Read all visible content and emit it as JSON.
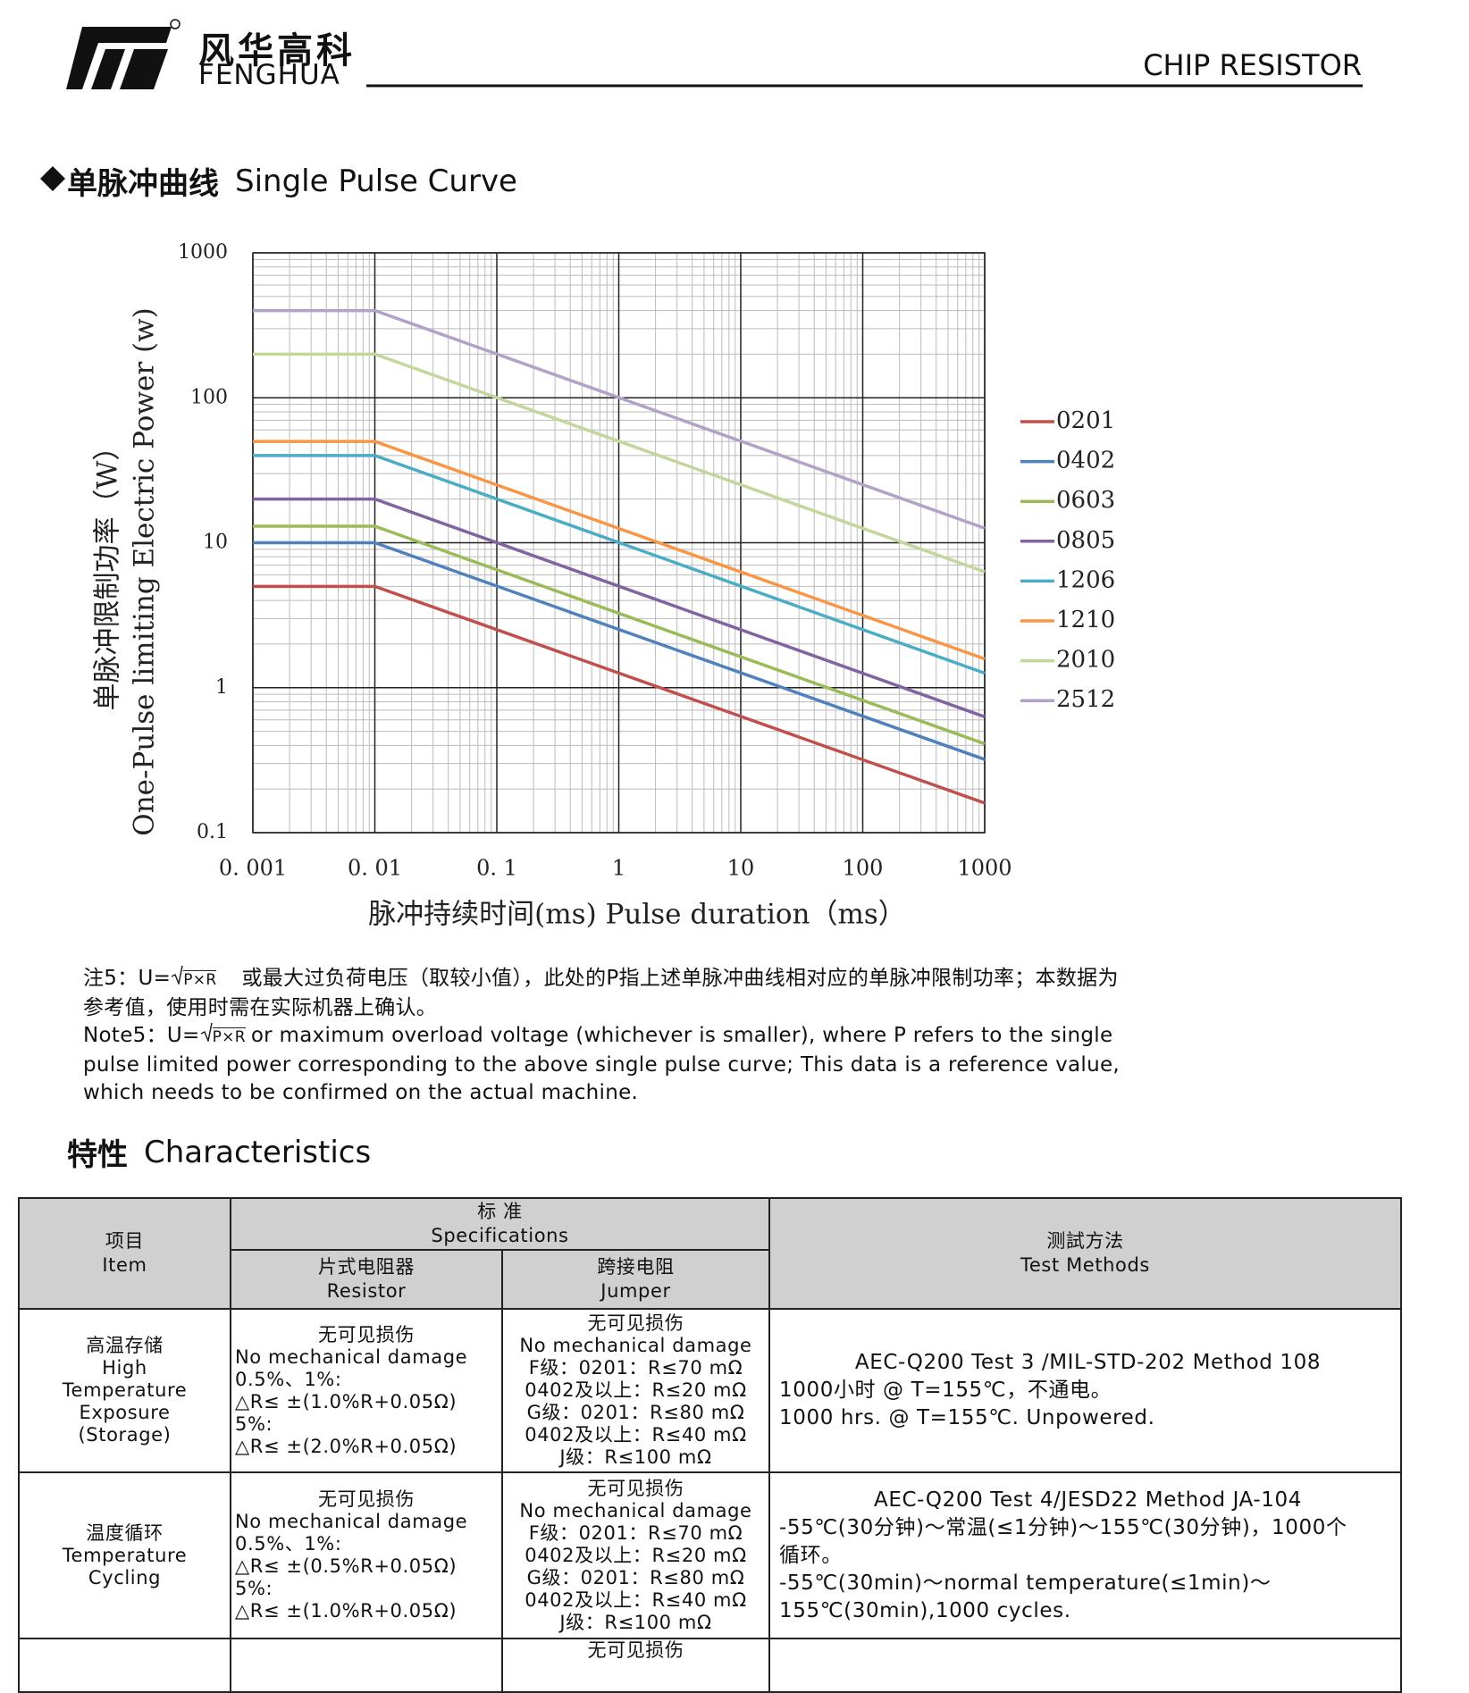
{
  "header": {
    "brand_cn": "风华高科",
    "brand_en": "FENGHUA",
    "product": "CHIP RESISTOR"
  },
  "section1": {
    "title_cn": "单脉冲曲线",
    "title_en": "Single Pulse Curve"
  },
  "chart_data": {
    "type": "line",
    "log_x": true,
    "log_y": true,
    "grid": true,
    "minor_grid": true,
    "legend": "right",
    "y_label_cn": "单脉冲限制功率（W）",
    "y_label_en": "One-Pulse limiting Electric Power (w)",
    "x_label": "脉冲持续时间(ms) Pulse duration（ms）",
    "x": [
      0.001,
      0.01,
      1000
    ],
    "xlim": [
      0.001,
      1000
    ],
    "xticks": [
      {
        "value": 0.001,
        "label": "0. 001"
      },
      {
        "value": 0.01,
        "label": "0. 01"
      },
      {
        "value": 0.1,
        "label": "0. 1"
      },
      1,
      10,
      100,
      1000
    ],
    "ylim": [
      0.1,
      1000
    ],
    "yticks": [
      0.1,
      1,
      10,
      100,
      1000
    ],
    "series": [
      {
        "name": "0201",
        "color": "#c0504d",
        "values": [
          5,
          5,
          0.16
        ]
      },
      {
        "name": "0402",
        "color": "#4f81bd",
        "values": [
          10,
          10,
          0.32
        ]
      },
      {
        "name": "0603",
        "color": "#9bbb59",
        "values": [
          13,
          13,
          0.41
        ]
      },
      {
        "name": "0805",
        "color": "#8064a2",
        "values": [
          20,
          20,
          0.63
        ]
      },
      {
        "name": "1206",
        "color": "#4bacc6",
        "values": [
          40,
          40,
          1.26
        ]
      },
      {
        "name": "1210",
        "color": "#f79646",
        "values": [
          50,
          50,
          1.58
        ]
      },
      {
        "name": "2010",
        "color": "#c3d69b",
        "values": [
          200,
          200,
          6.3
        ]
      },
      {
        "name": "2512",
        "color": "#b3a2c7",
        "values": [
          400,
          400,
          12.6
        ]
      }
    ]
  },
  "note": {
    "cn_prefix": "注5：U=",
    "cn_radicand": "P×R",
    "cn_line1_rest": "或最大过负荷电压（取较小值），此处的P指上述单脉冲曲线相对应的单脉冲限制功率；本数据为",
    "cn_line2": "参考值，使用时需在实际机器上确认。",
    "en_prefix": "Note5：U=",
    "en_radicand": "P×R",
    "en_line1_rest": "or maximum overload voltage (whichever is smaller), where P refers to the single",
    "en_line2": "pulse limited power corresponding to the above single pulse curve; This data is a reference value,",
    "en_line3": "which needs to be confirmed on the actual machine."
  },
  "section2": {
    "title_cn": "特性",
    "title_en": "Characteristics"
  },
  "table": {
    "header": {
      "item": [
        "项目",
        "Item"
      ],
      "spec": [
        "标 准",
        "Specifications"
      ],
      "resistor": [
        "片式电阻器",
        "Resistor"
      ],
      "jumper": [
        "跨接电阻",
        "Jumper"
      ],
      "method": [
        "测試方法",
        "Test Methods"
      ]
    },
    "rows": [
      {
        "item": [
          "高温存储",
          "High",
          "Temperature",
          "Exposure",
          "(Storage)"
        ],
        "resistor": [
          "无可见损伤",
          "No mechanical damage",
          "0.5%、1%:",
          "△R≤ ±(1.0%R+0.05Ω)",
          "5%:",
          "△R≤ ±(2.0%R+0.05Ω)"
        ],
        "jumper": [
          "无可见损伤",
          "No mechanical damage",
          "F级：0201：R≤70 mΩ",
          "0402及以上：R≤20 mΩ",
          "G级：0201：R≤80 mΩ",
          "0402及以上：R≤40 mΩ",
          "J级：R≤100 mΩ"
        ],
        "method": [
          "AEC-Q200 Test 3 /MIL-STD-202 Method 108",
          "1000小时 @ T=155℃，不通电。",
          "1000 hrs. @ T=155℃. Unpowered."
        ]
      },
      {
        "item": [
          "温度循环",
          "Temperature",
          "Cycling"
        ],
        "resistor": [
          "无可见损伤",
          "No mechanical damage",
          "0.5%、1%:",
          "△R≤ ±(0.5%R+0.05Ω)",
          "5%:",
          "△R≤ ±(1.0%R+0.05Ω)"
        ],
        "jumper": [
          "无可见损伤",
          "No mechanical damage",
          "F级：0201：R≤70 mΩ",
          "0402及以上：R≤20 mΩ",
          "G级：0201：R≤80 mΩ",
          "0402及以上：R≤40 mΩ",
          "J级：R≤100 mΩ"
        ],
        "method": [
          "AEC-Q200 Test  4/JESD22 Method JA-104",
          "-55℃(30分钟)～常温(≤1分钟)～155℃(30分钟)，1000个",
          "循环。",
          "-55℃(30min)～normal temperature(≤1min)～",
          "155℃(30min),1000 cycles."
        ]
      },
      {
        "jumper": [
          "无可见损伤"
        ]
      }
    ]
  }
}
